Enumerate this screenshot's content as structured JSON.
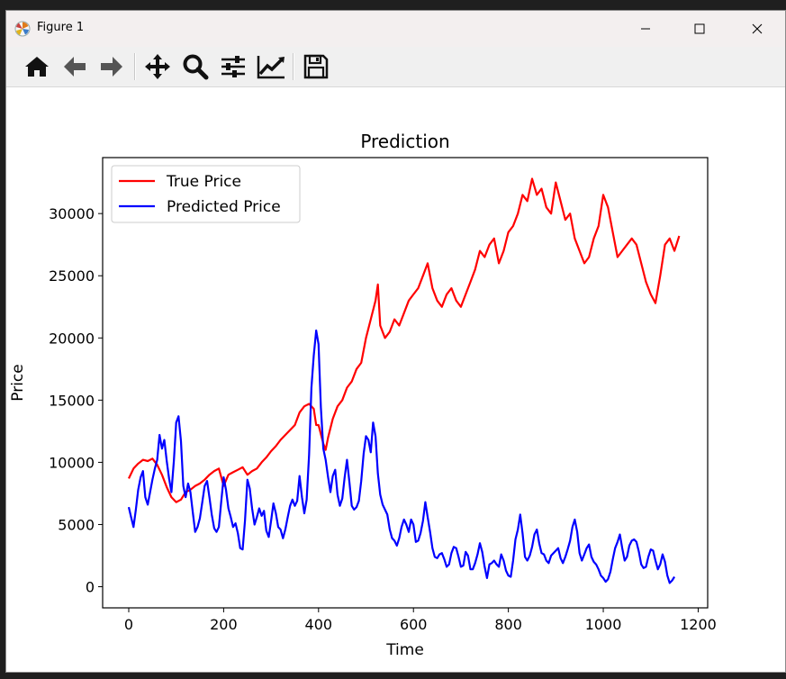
{
  "window": {
    "title": "Figure 1"
  },
  "toolbar": {
    "buttons": [
      "home-icon",
      "back-arrow-icon",
      "forward-arrow-icon",
      "pan-icon",
      "zoom-icon",
      "configure-subplots-icon",
      "edit-axis-icon",
      "save-icon"
    ]
  },
  "colors": {
    "true_price": "#ff0000",
    "predicted_price": "#0000ff"
  },
  "chart_data": {
    "type": "line",
    "title": "Prediction",
    "xlabel": "Time",
    "ylabel": "Price",
    "xlim": [
      -55,
      1220
    ],
    "ylim": [
      -1700,
      34500
    ],
    "xticks": [
      0,
      200,
      400,
      600,
      800,
      1000,
      1200
    ],
    "yticks": [
      0,
      5000,
      10000,
      15000,
      20000,
      25000,
      30000
    ],
    "legend_position": "upper-left",
    "grid": false,
    "series": [
      {
        "name": "True Price",
        "color": "#ff0000",
        "x": [
          0,
          10,
          20,
          30,
          40,
          50,
          60,
          70,
          80,
          90,
          100,
          110,
          120,
          130,
          140,
          150,
          160,
          170,
          180,
          190,
          200,
          210,
          220,
          230,
          240,
          250,
          260,
          270,
          280,
          290,
          300,
          310,
          320,
          330,
          340,
          350,
          360,
          370,
          380,
          390,
          395,
          400,
          410,
          415,
          420,
          430,
          440,
          450,
          460,
          470,
          480,
          490,
          500,
          510,
          520,
          525,
          530,
          540,
          550,
          560,
          570,
          580,
          590,
          600,
          610,
          620,
          630,
          640,
          650,
          660,
          670,
          680,
          690,
          700,
          710,
          720,
          730,
          740,
          750,
          760,
          770,
          780,
          790,
          800,
          810,
          820,
          830,
          840,
          850,
          860,
          870,
          880,
          890,
          900,
          910,
          920,
          930,
          940,
          950,
          960,
          970,
          980,
          990,
          1000,
          1010,
          1020,
          1030,
          1040,
          1050,
          1060,
          1070,
          1080,
          1090,
          1100,
          1110,
          1120,
          1130,
          1140,
          1150,
          1160
        ],
        "values": [
          8700,
          9500,
          9900,
          10200,
          10100,
          10300,
          9800,
          9000,
          8000,
          7200,
          6800,
          7000,
          7600,
          7800,
          8100,
          8300,
          8600,
          9000,
          9300,
          9500,
          8100,
          9000,
          9200,
          9400,
          9600,
          9000,
          9300,
          9500,
          10000,
          10400,
          10900,
          11300,
          11800,
          12200,
          12600,
          13000,
          14000,
          14500,
          14700,
          14300,
          13000,
          13000,
          11500,
          11000,
          12000,
          13500,
          14500,
          15000,
          16000,
          16500,
          17500,
          18000,
          20000,
          21500,
          23000,
          24300,
          21000,
          20000,
          20500,
          21500,
          21000,
          22000,
          23000,
          23500,
          24000,
          25000,
          26000,
          24000,
          23000,
          22500,
          23500,
          24000,
          23000,
          22500,
          23500,
          24500,
          25500,
          27000,
          26500,
          27500,
          28000,
          26000,
          27000,
          28500,
          29000,
          30000,
          31500,
          31000,
          32800,
          31500,
          32000,
          30500,
          30000,
          32500,
          31000,
          29500,
          30000,
          28000,
          27000,
          26000,
          26500,
          28000,
          29000,
          31500,
          30500,
          28500,
          26500,
          27000,
          27500,
          28000,
          27500,
          26000,
          24500,
          23500,
          22800,
          25000,
          27500,
          28000,
          27000,
          28200
        ]
      },
      {
        "name": "Predicted Price",
        "color": "#0000ff",
        "x": [
          0,
          5,
          10,
          15,
          20,
          25,
          30,
          35,
          40,
          45,
          50,
          55,
          60,
          65,
          70,
          75,
          80,
          85,
          90,
          95,
          100,
          105,
          110,
          115,
          120,
          125,
          130,
          135,
          140,
          145,
          150,
          155,
          160,
          165,
          170,
          175,
          180,
          185,
          190,
          195,
          200,
          205,
          210,
          215,
          220,
          225,
          230,
          235,
          240,
          245,
          250,
          255,
          260,
          265,
          270,
          275,
          280,
          285,
          290,
          295,
          300,
          305,
          310,
          315,
          320,
          325,
          330,
          335,
          340,
          345,
          350,
          355,
          360,
          365,
          370,
          375,
          380,
          385,
          390,
          395,
          400,
          405,
          410,
          415,
          420,
          425,
          430,
          435,
          440,
          445,
          450,
          455,
          460,
          465,
          470,
          475,
          480,
          485,
          490,
          495,
          500,
          505,
          510,
          515,
          520,
          525,
          530,
          535,
          540,
          545,
          550,
          555,
          560,
          565,
          570,
          575,
          580,
          585,
          590,
          595,
          600,
          605,
          610,
          615,
          620,
          625,
          630,
          635,
          640,
          645,
          650,
          655,
          660,
          665,
          670,
          675,
          680,
          685,
          690,
          695,
          700,
          705,
          710,
          715,
          720,
          725,
          730,
          735,
          740,
          745,
          750,
          755,
          760,
          765,
          770,
          775,
          780,
          785,
          790,
          795,
          800,
          805,
          810,
          815,
          820,
          825,
          830,
          835,
          840,
          845,
          850,
          855,
          860,
          865,
          870,
          875,
          880,
          885,
          890,
          895,
          900,
          905,
          910,
          915,
          920,
          925,
          930,
          935,
          940,
          945,
          950,
          955,
          960,
          965,
          970,
          975,
          980,
          985,
          990,
          995,
          1000,
          1005,
          1010,
          1015,
          1020,
          1025,
          1030,
          1035,
          1040,
          1045,
          1050,
          1055,
          1060,
          1065,
          1070,
          1075,
          1080,
          1085,
          1090,
          1095,
          1100,
          1105,
          1110,
          1115,
          1120,
          1125,
          1130,
          1135,
          1140,
          1145,
          1150
        ],
        "values": [
          6400,
          5600,
          4800,
          6200,
          7800,
          8800,
          9300,
          7200,
          6600,
          7600,
          8600,
          9500,
          10200,
          12200,
          11100,
          11800,
          10100,
          8700,
          7600,
          10100,
          13200,
          13700,
          11700,
          8100,
          7200,
          8300,
          7600,
          6000,
          4400,
          4800,
          5500,
          6800,
          8100,
          8500,
          7200,
          5800,
          4700,
          4400,
          4800,
          6900,
          8800,
          7800,
          6300,
          5600,
          4800,
          5100,
          4300,
          3100,
          3000,
          5300,
          8600,
          7900,
          6300,
          5000,
          5600,
          6300,
          5700,
          6100,
          4500,
          4000,
          5300,
          6700,
          5900,
          4800,
          4600,
          3900,
          4600,
          5600,
          6500,
          7000,
          6500,
          6900,
          8900,
          7200,
          5900,
          7000,
          10600,
          16000,
          18600,
          20600,
          19500,
          14400,
          11100,
          10200,
          8800,
          7600,
          8900,
          9400,
          7400,
          6500,
          7100,
          8800,
          10200,
          8400,
          6500,
          6200,
          6400,
          6900,
          8500,
          10700,
          12100,
          11800,
          10800,
          13200,
          12100,
          9100,
          7400,
          6600,
          6200,
          5800,
          4600,
          3900,
          3700,
          3300,
          3900,
          4800,
          5400,
          5000,
          4400,
          5400,
          5000,
          3600,
          3700,
          4300,
          5300,
          6800,
          5600,
          4400,
          3100,
          2400,
          2300,
          2600,
          2700,
          2200,
          1600,
          1800,
          2700,
          3200,
          3100,
          2400,
          1600,
          1700,
          2800,
          2500,
          1400,
          1400,
          1900,
          2600,
          3500,
          2800,
          1600,
          700,
          1800,
          1900,
          2100,
          1800,
          1600,
          2600,
          2100,
          1300,
          900,
          800,
          2100,
          3800,
          4600,
          5800,
          4300,
          2400,
          2100,
          2500,
          3200,
          4200,
          4600,
          3500,
          2700,
          2600,
          2100,
          1900,
          2500,
          2700,
          2900,
          3100,
          2300,
          1900,
          2400,
          3000,
          3700,
          4800,
          5400,
          4400,
          2700,
          2100,
          2600,
          3100,
          3400,
          2400,
          2000,
          1800,
          1400,
          900,
          700,
          400,
          600,
          1200,
          2200,
          3100,
          3600,
          4200,
          3100,
          2100,
          2400,
          3300,
          3700,
          3800,
          3600,
          2800,
          1800,
          1500,
          1600,
          2400,
          3000,
          2900,
          2100,
          1400,
          1800,
          2600,
          2000,
          900,
          300,
          500,
          800
        ]
      }
    ]
  }
}
